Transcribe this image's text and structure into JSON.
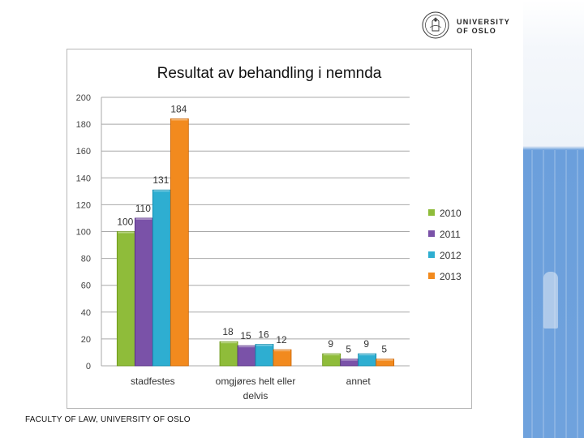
{
  "branding": {
    "logo_line1": "UNIVERSITY",
    "logo_line2": "OF OSLO",
    "footer": "FACULTY OF LAW, UNIVERSITY OF OSLO"
  },
  "colors": {
    "series": [
      "#8fbc3a",
      "#7a52a8",
      "#2eaed1",
      "#f28a1e"
    ]
  },
  "chart_data": {
    "type": "bar",
    "title": "Resultat av behandling i nemnda",
    "xlabel": "",
    "ylabel": "",
    "categories": [
      [
        "stadfestes"
      ],
      [
        "omgjøres helt eller",
        "delvis"
      ],
      [
        "annet"
      ]
    ],
    "series": [
      {
        "name": "2010",
        "values": [
          100,
          18,
          9
        ]
      },
      {
        "name": "2011",
        "values": [
          110,
          15,
          5
        ]
      },
      {
        "name": "2012",
        "values": [
          131,
          16,
          9
        ]
      },
      {
        "name": "2013",
        "values": [
          184,
          12,
          5
        ]
      }
    ],
    "ylim": [
      0,
      200
    ],
    "yticks": [
      0,
      20,
      40,
      60,
      80,
      100,
      120,
      140,
      160,
      180,
      200
    ],
    "grid": true,
    "legend": "right"
  }
}
